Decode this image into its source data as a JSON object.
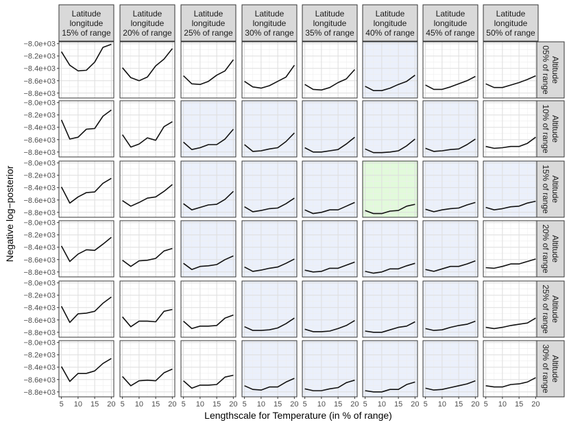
{
  "chart_data": {
    "type": "line",
    "xlabel": "Lengthscale for Temperature (in % of range)",
    "ylabel": "Negative log−posterior",
    "x": [
      5,
      7.5,
      10,
      12.5,
      15,
      17.5,
      20
    ],
    "x_ticks": [
      5,
      10,
      15,
      20
    ],
    "x_tick_labels": [
      "5",
      "10",
      "15",
      "20"
    ],
    "xlim": [
      4.25,
      20.75
    ],
    "y_ticks": [
      -8000,
      -8200,
      -8400,
      -8600,
      -8800
    ],
    "y_tick_labels": [
      "−8.0e+03",
      "−8.2e+03",
      "−8.4e+03",
      "−8.6e+03",
      "−8.8e+03"
    ],
    "ylim": [
      -8880,
      -7970
    ],
    "grid": true,
    "col_labels": [
      [
        "Latitude",
        "longitude",
        "15% of range"
      ],
      [
        "Latitude",
        "longitude",
        "20% of range"
      ],
      [
        "Latitude",
        "longitude",
        "25% of range"
      ],
      [
        "Latitude",
        "longitude",
        "30% of range"
      ],
      [
        "Latitude",
        "longitude",
        "35% of range"
      ],
      [
        "Latitude",
        "longitude",
        "40% of range"
      ],
      [
        "Latitude",
        "longitude",
        "45% of range"
      ],
      [
        "Latitude",
        "longitude",
        "50% of range"
      ]
    ],
    "row_labels": [
      [
        "Altitude",
        "05% of range"
      ],
      [
        "Altitude",
        "10% of range"
      ],
      [
        "Altitude",
        "15% of range"
      ],
      [
        "Altitude",
        "20% of range"
      ],
      [
        "Altitude",
        "25% of range"
      ],
      [
        "Altitude",
        "30% of range"
      ]
    ],
    "panel_fill_colors": {
      "white": "#ffffff",
      "blue": "#ebf0fb",
      "green": "#e2fadb"
    },
    "panel_fills": [
      [
        "white",
        "white",
        "white",
        "white",
        "white",
        "blue",
        "white",
        "white"
      ],
      [
        "white",
        "white",
        "blue",
        "blue",
        "blue",
        "blue",
        "blue",
        "white"
      ],
      [
        "white",
        "white",
        "blue",
        "blue",
        "blue",
        "green",
        "blue",
        "blue"
      ],
      [
        "white",
        "white",
        "blue",
        "blue",
        "blue",
        "blue",
        "blue",
        "white"
      ],
      [
        "white",
        "white",
        "white",
        "blue",
        "blue",
        "blue",
        "blue",
        "white"
      ],
      [
        "white",
        "white",
        "white",
        "blue",
        "blue",
        "blue",
        "blue",
        "white"
      ]
    ],
    "series": [
      [
        [
          -8130,
          -8350,
          -8440,
          -8430,
          -8300,
          -8060,
          -8010
        ],
        [
          -8390,
          -8550,
          -8600,
          -8540,
          -8360,
          -8250,
          -8080
        ],
        [
          -8520,
          -8650,
          -8660,
          -8610,
          -8510,
          -8440,
          -8260
        ],
        [
          -8610,
          -8700,
          -8720,
          -8680,
          -8610,
          -8540,
          -8350
        ],
        [
          -8660,
          -8740,
          -8750,
          -8710,
          -8630,
          -8570,
          -8420
        ],
        [
          -8690,
          -8760,
          -8760,
          -8720,
          -8660,
          -8610,
          -8510
        ],
        [
          -8670,
          -8740,
          -8740,
          -8700,
          -8650,
          -8600,
          -8530
        ],
        [
          -8650,
          -8710,
          -8710,
          -8670,
          -8630,
          -8580,
          -8520
        ]
      ],
      [
        [
          -8280,
          -8590,
          -8560,
          -8430,
          -8420,
          -8220,
          -8120
        ],
        [
          -8520,
          -8720,
          -8670,
          -8570,
          -8610,
          -8390,
          -8310
        ],
        [
          -8640,
          -8760,
          -8730,
          -8680,
          -8680,
          -8590,
          -8430
        ],
        [
          -8680,
          -8790,
          -8780,
          -8750,
          -8730,
          -8630,
          -8490
        ],
        [
          -8730,
          -8800,
          -8800,
          -8780,
          -8760,
          -8670,
          -8560
        ],
        [
          -8750,
          -8810,
          -8810,
          -8800,
          -8780,
          -8700,
          -8590
        ],
        [
          -8740,
          -8790,
          -8780,
          -8760,
          -8750,
          -8680,
          -8590
        ],
        [
          -8710,
          -8740,
          -8730,
          -8710,
          -8710,
          -8660,
          -8560
        ]
      ],
      [
        [
          -8390,
          -8650,
          -8550,
          -8480,
          -8470,
          -8330,
          -8250
        ],
        [
          -8610,
          -8700,
          -8640,
          -8570,
          -8550,
          -8460,
          -8350
        ],
        [
          -8660,
          -8760,
          -8720,
          -8680,
          -8670,
          -8590,
          -8460
        ],
        [
          -8710,
          -8790,
          -8770,
          -8740,
          -8730,
          -8660,
          -8570
        ],
        [
          -8760,
          -8820,
          -8800,
          -8760,
          -8760,
          -8700,
          -8640
        ],
        [
          -8770,
          -8820,
          -8820,
          -8780,
          -8770,
          -8700,
          -8670
        ],
        [
          -8750,
          -8790,
          -8760,
          -8740,
          -8730,
          -8680,
          -8640
        ],
        [
          -8720,
          -8760,
          -8740,
          -8710,
          -8700,
          -8650,
          -8620
        ]
      ],
      [
        [
          -8380,
          -8630,
          -8510,
          -8440,
          -8450,
          -8350,
          -8240
        ],
        [
          -8610,
          -8710,
          -8620,
          -8610,
          -8580,
          -8460,
          -8420
        ],
        [
          -8660,
          -8760,
          -8710,
          -8700,
          -8680,
          -8600,
          -8540
        ],
        [
          -8720,
          -8790,
          -8770,
          -8740,
          -8720,
          -8660,
          -8590
        ],
        [
          -8770,
          -8800,
          -8790,
          -8740,
          -8740,
          -8690,
          -8640
        ],
        [
          -8790,
          -8820,
          -8800,
          -8750,
          -8750,
          -8700,
          -8660
        ],
        [
          -8760,
          -8790,
          -8750,
          -8710,
          -8710,
          -8670,
          -8620
        ],
        [
          -8730,
          -8740,
          -8710,
          -8670,
          -8670,
          -8630,
          -8590
        ]
      ],
      [
        [
          -8380,
          -8640,
          -8500,
          -8490,
          -8460,
          -8330,
          -8230
        ],
        [
          -8550,
          -8710,
          -8620,
          -8620,
          -8630,
          -8460,
          -8430
        ],
        [
          -8620,
          -8740,
          -8700,
          -8700,
          -8690,
          -8570,
          -8520
        ],
        [
          -8710,
          -8770,
          -8770,
          -8760,
          -8730,
          -8660,
          -8570
        ],
        [
          -8750,
          -8790,
          -8790,
          -8780,
          -8740,
          -8690,
          -8610
        ],
        [
          -8780,
          -8800,
          -8800,
          -8760,
          -8720,
          -8700,
          -8630
        ],
        [
          -8740,
          -8770,
          -8760,
          -8720,
          -8690,
          -8670,
          -8620
        ],
        [
          -8720,
          -8740,
          -8720,
          -8690,
          -8670,
          -8650,
          -8570
        ]
      ],
      [
        [
          -8390,
          -8630,
          -8500,
          -8500,
          -8460,
          -8340,
          -8260
        ],
        [
          -8550,
          -8700,
          -8620,
          -8610,
          -8620,
          -8490,
          -8430
        ],
        [
          -8620,
          -8740,
          -8690,
          -8690,
          -8680,
          -8560,
          -8530
        ],
        [
          -8700,
          -8760,
          -8770,
          -8720,
          -8720,
          -8640,
          -8580
        ],
        [
          -8750,
          -8780,
          -8780,
          -8750,
          -8730,
          -8650,
          -8610
        ],
        [
          -8780,
          -8800,
          -8800,
          -8760,
          -8760,
          -8680,
          -8640
        ],
        [
          -8740,
          -8770,
          -8760,
          -8730,
          -8700,
          -8670,
          -8620
        ],
        [
          -8700,
          -8720,
          -8720,
          -8680,
          -8670,
          -8640,
          -8570
        ]
      ]
    ]
  }
}
